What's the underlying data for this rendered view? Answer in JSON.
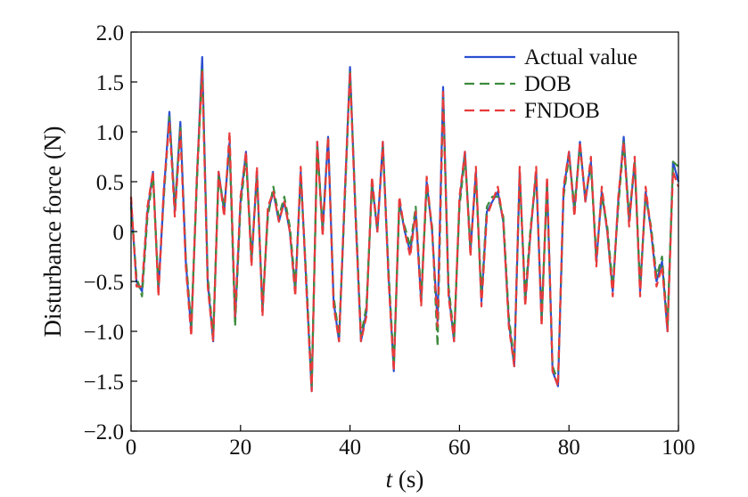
{
  "chart_data": {
    "type": "line",
    "title": "",
    "xlabel_var": "t",
    "xlabel_unit": " (s)",
    "ylabel": "Disturbance force (N)",
    "xlim": [
      0,
      100
    ],
    "ylim": [
      -2.0,
      2.0
    ],
    "xticks": [
      0,
      20,
      40,
      60,
      80,
      100
    ],
    "xtick_labels": [
      "0",
      "20",
      "40",
      "60",
      "80",
      "100"
    ],
    "yticks": [
      -2.0,
      -1.5,
      -1.0,
      -0.5,
      0,
      0.5,
      1.0,
      1.5,
      2.0
    ],
    "ytick_labels": [
      "−2.0",
      "−1.5",
      "−1.0",
      "−0.5",
      "0",
      "0.5",
      "1.0",
      "1.5",
      "2.0"
    ],
    "grid": false,
    "legend_position": "top-right",
    "x": [
      0,
      1,
      2,
      3,
      4,
      5,
      6,
      7,
      8,
      9,
      10,
      11,
      12,
      13,
      14,
      15,
      16,
      17,
      18,
      19,
      20,
      21,
      22,
      23,
      24,
      25,
      26,
      27,
      28,
      29,
      30,
      31,
      32,
      33,
      34,
      35,
      36,
      37,
      38,
      39,
      40,
      41,
      42,
      43,
      44,
      45,
      46,
      47,
      48,
      49,
      50,
      51,
      52,
      53,
      54,
      55,
      56,
      57,
      58,
      59,
      60,
      61,
      62,
      63,
      64,
      65,
      66,
      67,
      68,
      69,
      70,
      71,
      72,
      73,
      74,
      75,
      76,
      77,
      78,
      79,
      80,
      81,
      82,
      83,
      84,
      85,
      86,
      87,
      88,
      89,
      90,
      91,
      92,
      93,
      94,
      95,
      96,
      97,
      98,
      99,
      100
    ],
    "series": [
      {
        "name": "Actual value",
        "color": "#2a4fd1",
        "dash": "solid",
        "values": [
          0.3,
          -0.5,
          -0.6,
          0.2,
          0.6,
          -0.6,
          0.4,
          1.2,
          0.2,
          1.1,
          -0.3,
          -1.0,
          0.5,
          1.75,
          -0.5,
          -1.1,
          0.6,
          0.2,
          0.9,
          -0.9,
          0.3,
          0.8,
          -0.3,
          0.6,
          -0.8,
          0.2,
          0.4,
          0.1,
          0.3,
          0.0,
          -0.6,
          0.6,
          -0.5,
          -1.6,
          0.9,
          0.0,
          0.95,
          -0.7,
          -1.1,
          0.3,
          1.65,
          0.2,
          -1.1,
          -0.8,
          0.5,
          0.0,
          0.9,
          -0.4,
          -1.4,
          0.3,
          0.0,
          -0.2,
          0.2,
          -0.7,
          0.5,
          0.0,
          -0.9,
          1.45,
          -0.6,
          -1.1,
          0.3,
          0.8,
          -0.2,
          0.6,
          -0.7,
          0.2,
          0.3,
          0.4,
          0.1,
          -0.9,
          -1.35,
          0.6,
          -0.7,
          0.0,
          0.6,
          -0.9,
          0.5,
          -1.4,
          -1.55,
          0.4,
          0.8,
          0.2,
          0.9,
          0.3,
          0.7,
          -0.3,
          0.4,
          0.0,
          -0.6,
          0.3,
          0.95,
          0.1,
          0.7,
          -0.6,
          0.4,
          0.0,
          -0.5,
          -0.3,
          -1.0,
          0.7,
          0.5
        ]
      },
      {
        "name": "DOB",
        "color": "#3d8b3d",
        "dash": "dashed",
        "values": [
          0.25,
          -0.45,
          -0.65,
          0.15,
          0.55,
          -0.55,
          0.35,
          1.15,
          0.25,
          1.05,
          -0.25,
          -0.95,
          0.45,
          1.65,
          -0.45,
          -1.05,
          0.55,
          0.25,
          0.85,
          -0.95,
          0.25,
          0.75,
          -0.25,
          0.55,
          -0.75,
          0.15,
          0.45,
          0.15,
          0.35,
          0.05,
          -0.55,
          0.55,
          -0.45,
          -1.55,
          0.85,
          0.05,
          0.95,
          -0.65,
          -1.05,
          0.25,
          1.6,
          0.25,
          -1.05,
          -0.75,
          0.45,
          0.05,
          0.85,
          -0.35,
          -1.35,
          0.25,
          0.05,
          -0.15,
          0.25,
          -0.65,
          0.45,
          0.05,
          -1.15,
          1.35,
          -0.55,
          -1.05,
          0.25,
          0.75,
          -0.15,
          0.55,
          -0.65,
          0.25,
          0.35,
          0.35,
          0.15,
          -0.85,
          -1.3,
          0.55,
          -0.65,
          0.05,
          0.55,
          -0.85,
          0.45,
          -1.35,
          -1.5,
          0.35,
          0.75,
          0.25,
          0.85,
          0.35,
          0.65,
          -0.25,
          0.35,
          0.05,
          -0.55,
          0.25,
          0.9,
          0.15,
          0.7,
          -0.55,
          0.35,
          0.05,
          -0.45,
          -0.25,
          -0.95,
          0.7,
          0.65
        ]
      },
      {
        "name": "FNDOB",
        "color": "#e83a3a",
        "dash": "dashed",
        "values": [
          0.35,
          -0.55,
          -0.55,
          0.25,
          0.6,
          -0.65,
          0.45,
          1.1,
          0.15,
          1.0,
          -0.35,
          -1.05,
          0.55,
          1.6,
          -0.55,
          -1.1,
          0.6,
          0.15,
          1.0,
          -0.85,
          0.35,
          0.8,
          -0.35,
          0.65,
          -0.85,
          0.25,
          0.4,
          0.1,
          0.3,
          0.0,
          -0.65,
          0.65,
          -0.55,
          -1.6,
          0.9,
          -0.05,
          0.95,
          -0.75,
          -1.1,
          0.35,
          1.6,
          0.15,
          -1.1,
          -0.85,
          0.55,
          0.0,
          0.9,
          -0.45,
          -1.4,
          0.35,
          0.0,
          -0.25,
          0.2,
          -0.75,
          0.55,
          0.0,
          -0.95,
          1.4,
          -0.65,
          -1.1,
          0.35,
          0.8,
          -0.25,
          0.65,
          -0.75,
          0.15,
          0.3,
          0.45,
          0.1,
          -0.95,
          -1.35,
          0.65,
          -0.75,
          0.0,
          0.65,
          -0.95,
          0.55,
          -1.4,
          -1.55,
          0.45,
          0.8,
          0.15,
          0.9,
          0.3,
          0.75,
          -0.35,
          0.45,
          0.0,
          -0.65,
          0.35,
          0.9,
          0.05,
          0.75,
          -0.65,
          0.45,
          0.0,
          -0.55,
          -0.35,
          -1.0,
          0.6,
          0.45
        ]
      }
    ]
  }
}
